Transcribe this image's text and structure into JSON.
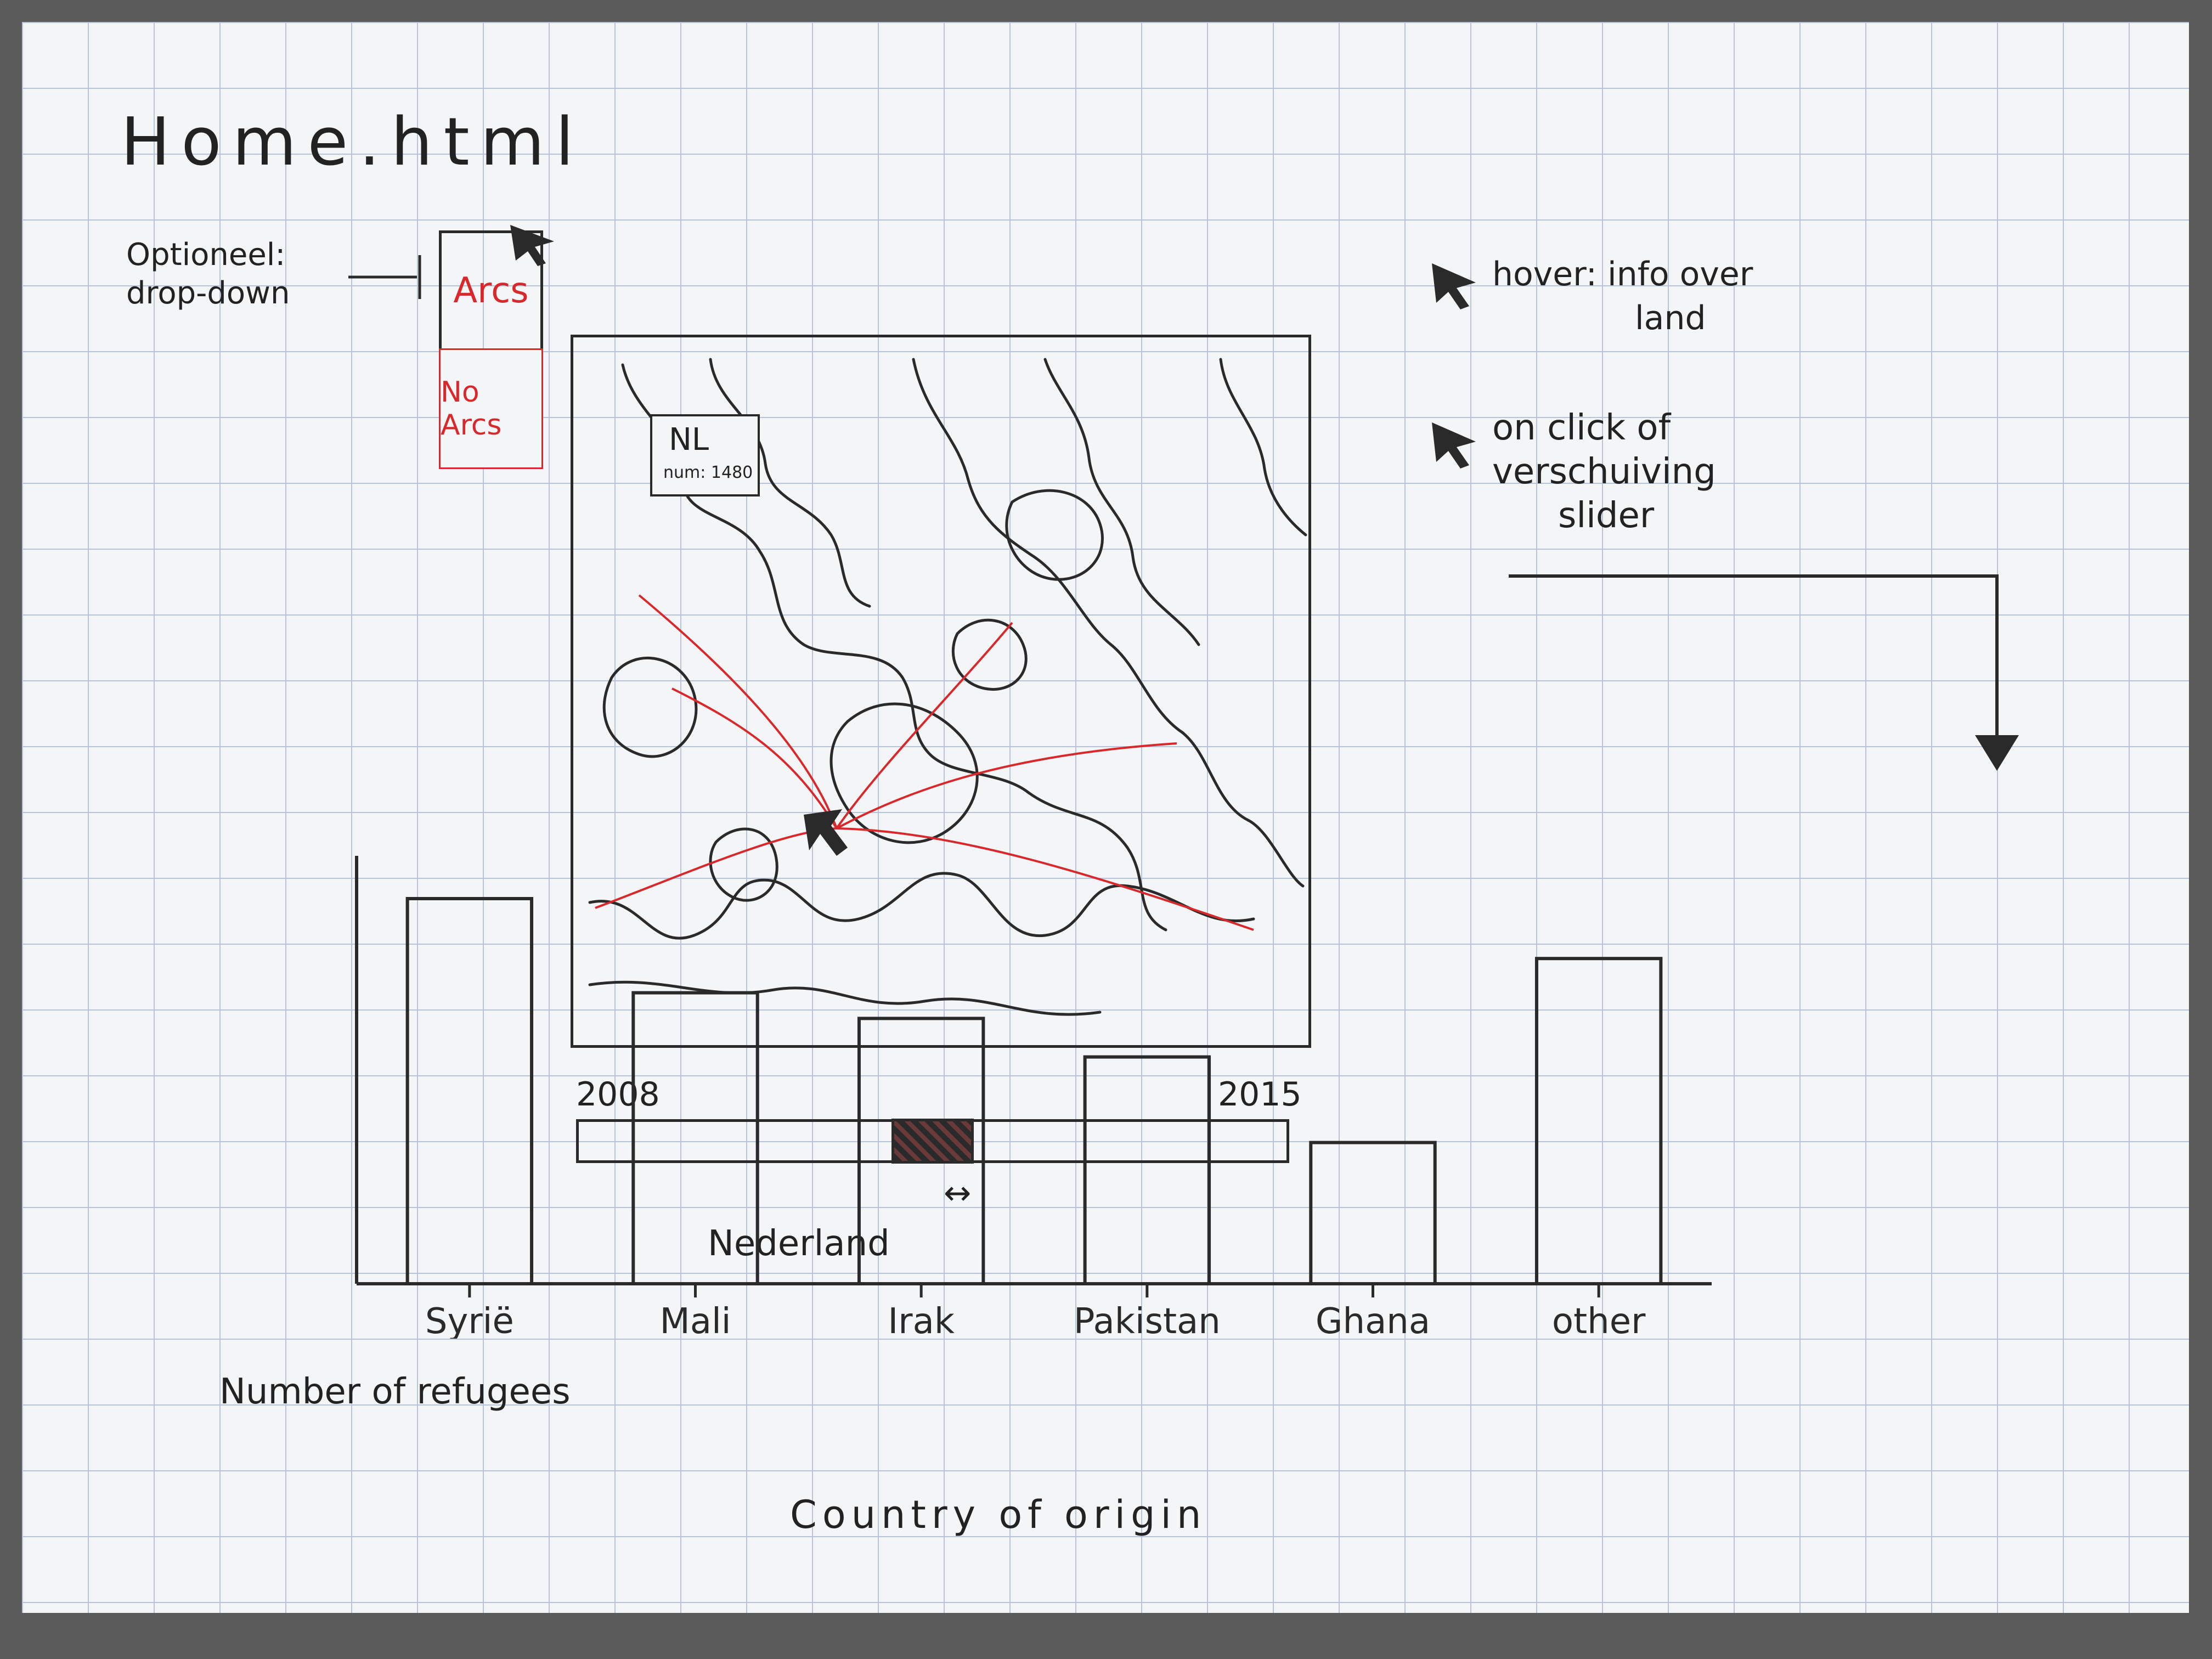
{
  "page": {
    "title": "Home.html"
  },
  "dropdown": {
    "note_line1": "Optioneel:",
    "note_line2": "drop-down",
    "option_selected": "Arcs",
    "option_other": "No Arcs"
  },
  "map": {
    "tooltip_country": "NL",
    "tooltip_detail": "num: 1480"
  },
  "slider": {
    "start_label": "2008",
    "end_label": "2015",
    "country_label": "Nederland",
    "arrows": "↔",
    "handle_fraction": 0.5
  },
  "annotations": {
    "hover_line1": "hover: info over",
    "hover_line2": "land",
    "click_line1": "on click of",
    "click_line2": "verschuiving",
    "click_line3": "slider"
  },
  "colors": {
    "ink": "#2a2a2a",
    "arc": "#d9282b",
    "grid": "#b9c3d6",
    "paper": "#f4f5f7"
  },
  "chart_data": {
    "type": "bar",
    "categories": [
      "Syrië",
      "Mali",
      "Irak",
      "Pakistan",
      "Ghana",
      "other"
    ],
    "values": [
      90,
      68,
      62,
      53,
      33,
      76
    ],
    "xlabel": "Country of origin",
    "ylabel": "Number of refugees"
  }
}
